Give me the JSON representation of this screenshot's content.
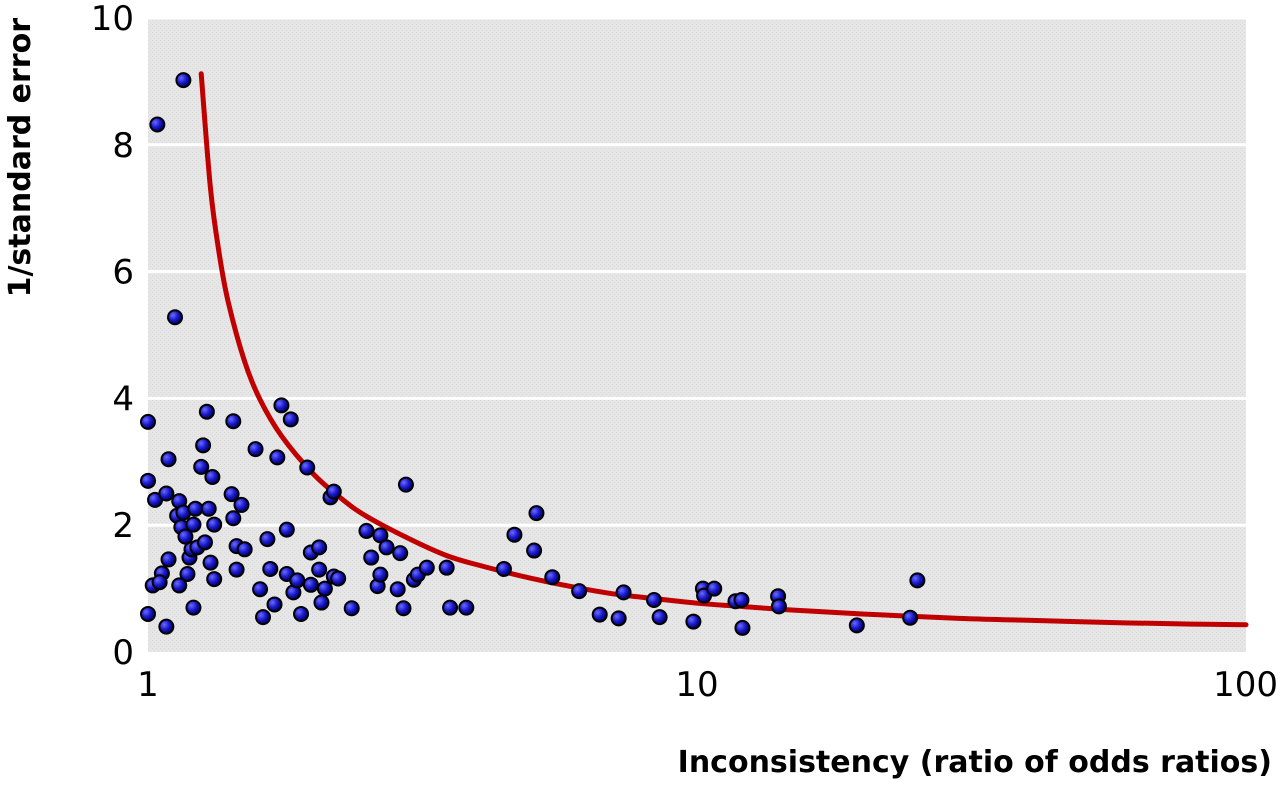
{
  "chart_data": {
    "type": "scatter",
    "title": "",
    "xlabel": "Inconsistency (ratio of odds ratios)",
    "ylabel": "1/standard error",
    "xscale": "log",
    "xlim": [
      1,
      100
    ],
    "ylim": [
      0,
      10
    ],
    "xticks": [
      1,
      10,
      100
    ],
    "xtick_labels": [
      "1",
      "10",
      "100"
    ],
    "yticks": [
      0,
      2,
      4,
      6,
      8,
      10
    ],
    "ytick_labels": [
      "0",
      "2",
      "4",
      "6",
      "8",
      "10"
    ],
    "grid": "horizontal",
    "legend": "none",
    "colors": {
      "plot_background": "#e8e8e8",
      "grid": "#ffffff",
      "points": "#1a1acc",
      "point_outline": "#000000",
      "curve": "#c00000"
    },
    "series": [
      {
        "type": "scatter",
        "points": [
          [
            1.16,
            9.02
          ],
          [
            1.04,
            8.32
          ],
          [
            1.12,
            5.28
          ],
          [
            1.0,
            3.63
          ],
          [
            1.0,
            2.7
          ],
          [
            1.03,
            2.4
          ],
          [
            1.08,
            2.5
          ],
          [
            1.09,
            3.04
          ],
          [
            1.09,
            1.46
          ],
          [
            1.06,
            1.24
          ],
          [
            1.02,
            1.05
          ],
          [
            1.05,
            1.1
          ],
          [
            1.0,
            0.6
          ],
          [
            1.08,
            0.4
          ],
          [
            1.13,
            2.15
          ],
          [
            1.14,
            2.38
          ],
          [
            1.15,
            1.97
          ],
          [
            1.16,
            2.2
          ],
          [
            1.17,
            1.82
          ],
          [
            1.18,
            1.23
          ],
          [
            1.19,
            1.49
          ],
          [
            1.2,
            1.62
          ],
          [
            1.21,
            2.01
          ],
          [
            1.22,
            2.26
          ],
          [
            1.21,
            0.7
          ],
          [
            1.14,
            1.05
          ],
          [
            1.23,
            1.65
          ],
          [
            1.25,
            2.92
          ],
          [
            1.26,
            3.26
          ],
          [
            1.27,
            1.73
          ],
          [
            1.28,
            3.79
          ],
          [
            1.29,
            2.26
          ],
          [
            1.3,
            1.41
          ],
          [
            1.31,
            2.76
          ],
          [
            1.32,
            1.15
          ],
          [
            1.32,
            2.01
          ],
          [
            1.43,
            3.64
          ],
          [
            1.42,
            2.49
          ],
          [
            1.43,
            2.11
          ],
          [
            1.45,
            1.67
          ],
          [
            1.45,
            1.3
          ],
          [
            1.48,
            2.32
          ],
          [
            1.5,
            1.62
          ],
          [
            1.57,
            3.2
          ],
          [
            1.6,
            0.99
          ],
          [
            1.62,
            0.55
          ],
          [
            1.65,
            1.78
          ],
          [
            1.67,
            1.31
          ],
          [
            1.7,
            0.75
          ],
          [
            1.72,
            3.07
          ],
          [
            1.75,
            3.89
          ],
          [
            1.79,
            1.93
          ],
          [
            1.79,
            1.23
          ],
          [
            1.82,
            3.67
          ],
          [
            1.84,
            0.94
          ],
          [
            1.87,
            1.13
          ],
          [
            1.9,
            0.6
          ],
          [
            1.95,
            2.91
          ],
          [
            1.98,
            1.57
          ],
          [
            1.98,
            1.06
          ],
          [
            2.05,
            1.65
          ],
          [
            2.05,
            1.3
          ],
          [
            2.07,
            0.78
          ],
          [
            2.1,
            1.0
          ],
          [
            2.15,
            2.44
          ],
          [
            2.18,
            2.53
          ],
          [
            2.18,
            1.19
          ],
          [
            2.22,
            1.16
          ],
          [
            2.35,
            0.69
          ],
          [
            2.5,
            1.91
          ],
          [
            2.55,
            1.49
          ],
          [
            2.62,
            1.04
          ],
          [
            2.65,
            1.22
          ],
          [
            2.65,
            1.84
          ],
          [
            2.72,
            1.65
          ],
          [
            2.85,
            0.99
          ],
          [
            2.88,
            1.56
          ],
          [
            2.92,
            0.69
          ],
          [
            2.95,
            2.64
          ],
          [
            3.05,
            1.14
          ],
          [
            3.1,
            1.22
          ],
          [
            3.22,
            1.33
          ],
          [
            3.5,
            1.33
          ],
          [
            3.55,
            0.7
          ],
          [
            3.8,
            0.7
          ],
          [
            4.45,
            1.31
          ],
          [
            4.65,
            1.85
          ],
          [
            5.05,
            1.6
          ],
          [
            5.1,
            2.19
          ],
          [
            5.45,
            1.18
          ],
          [
            6.1,
            0.96
          ],
          [
            6.65,
            0.59
          ],
          [
            7.2,
            0.53
          ],
          [
            7.35,
            0.94
          ],
          [
            8.35,
            0.82
          ],
          [
            8.55,
            0.55
          ],
          [
            9.85,
            0.48
          ],
          [
            10.25,
            1.0
          ],
          [
            10.3,
            0.89
          ],
          [
            10.75,
            1.0
          ],
          [
            11.75,
            0.8
          ],
          [
            12.05,
            0.82
          ],
          [
            12.1,
            0.38
          ],
          [
            14.05,
            0.88
          ],
          [
            14.1,
            0.72
          ],
          [
            19.55,
            0.42
          ],
          [
            24.45,
            0.54
          ],
          [
            25.2,
            1.13
          ]
        ]
      },
      {
        "type": "line",
        "shape": "curve",
        "points": [
          [
            1.25,
            9.12
          ],
          [
            1.3,
            7.3
          ],
          [
            1.35,
            6.25
          ],
          [
            1.4,
            5.52
          ],
          [
            1.5,
            4.58
          ],
          [
            1.6,
            3.98
          ],
          [
            1.75,
            3.41
          ],
          [
            2.0,
            2.81
          ],
          [
            2.25,
            2.42
          ],
          [
            2.5,
            2.14
          ],
          [
            3.0,
            1.78
          ],
          [
            3.5,
            1.52
          ],
          [
            4.0,
            1.37
          ],
          [
            5.0,
            1.16
          ],
          [
            6.0,
            1.02
          ],
          [
            7.0,
            0.92
          ],
          [
            8.0,
            0.86
          ],
          [
            10.0,
            0.77
          ],
          [
            12.0,
            0.72
          ],
          [
            15.0,
            0.66
          ],
          [
            20.0,
            0.6
          ],
          [
            30.0,
            0.53
          ],
          [
            40.0,
            0.5
          ],
          [
            60.0,
            0.46
          ],
          [
            80.0,
            0.44
          ],
          [
            100.0,
            0.43
          ]
        ]
      }
    ]
  }
}
